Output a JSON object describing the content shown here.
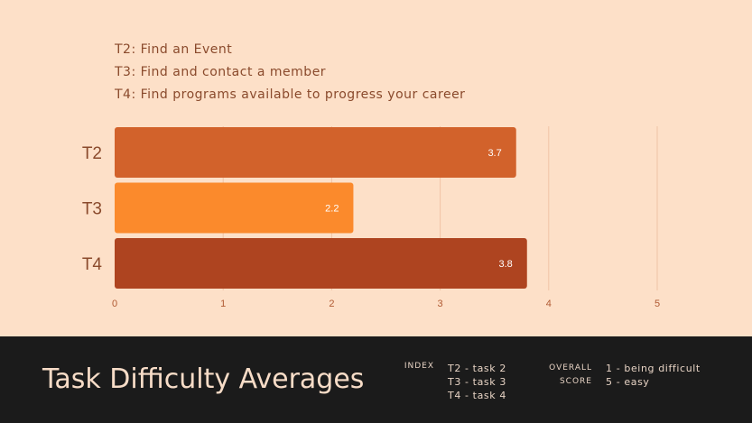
{
  "tasks": [
    "T2: Find an Event",
    "T3: Find and contact a member",
    "T4: Find programs available to progress your career"
  ],
  "footer": {
    "title": "Task Difficulty Averages",
    "index_label": "INDEX",
    "index_items": [
      "T2 - task 2",
      "T3 - task 3",
      "T4 - task 4"
    ],
    "overall_label": "OVERALL",
    "score_label": "SCORE",
    "scale_items": [
      "1 - being difficult",
      "5 - easy"
    ]
  },
  "colors": {
    "background": "#fde0c8",
    "footer_background": "#1b1b1b",
    "bar_colors": [
      "#d2622b",
      "#fb8a2c",
      "#ae4420"
    ]
  },
  "chart_data": {
    "type": "bar",
    "orientation": "horizontal",
    "categories": [
      "T2",
      "T3",
      "T4"
    ],
    "values": [
      3.7,
      2.2,
      3.8
    ],
    "data_labels": [
      "3.7",
      "2.2",
      "3.8"
    ],
    "xlim": [
      0,
      5
    ],
    "xticks": [
      "0",
      "1",
      "2",
      "3",
      "4",
      "5"
    ],
    "grid": true
  }
}
